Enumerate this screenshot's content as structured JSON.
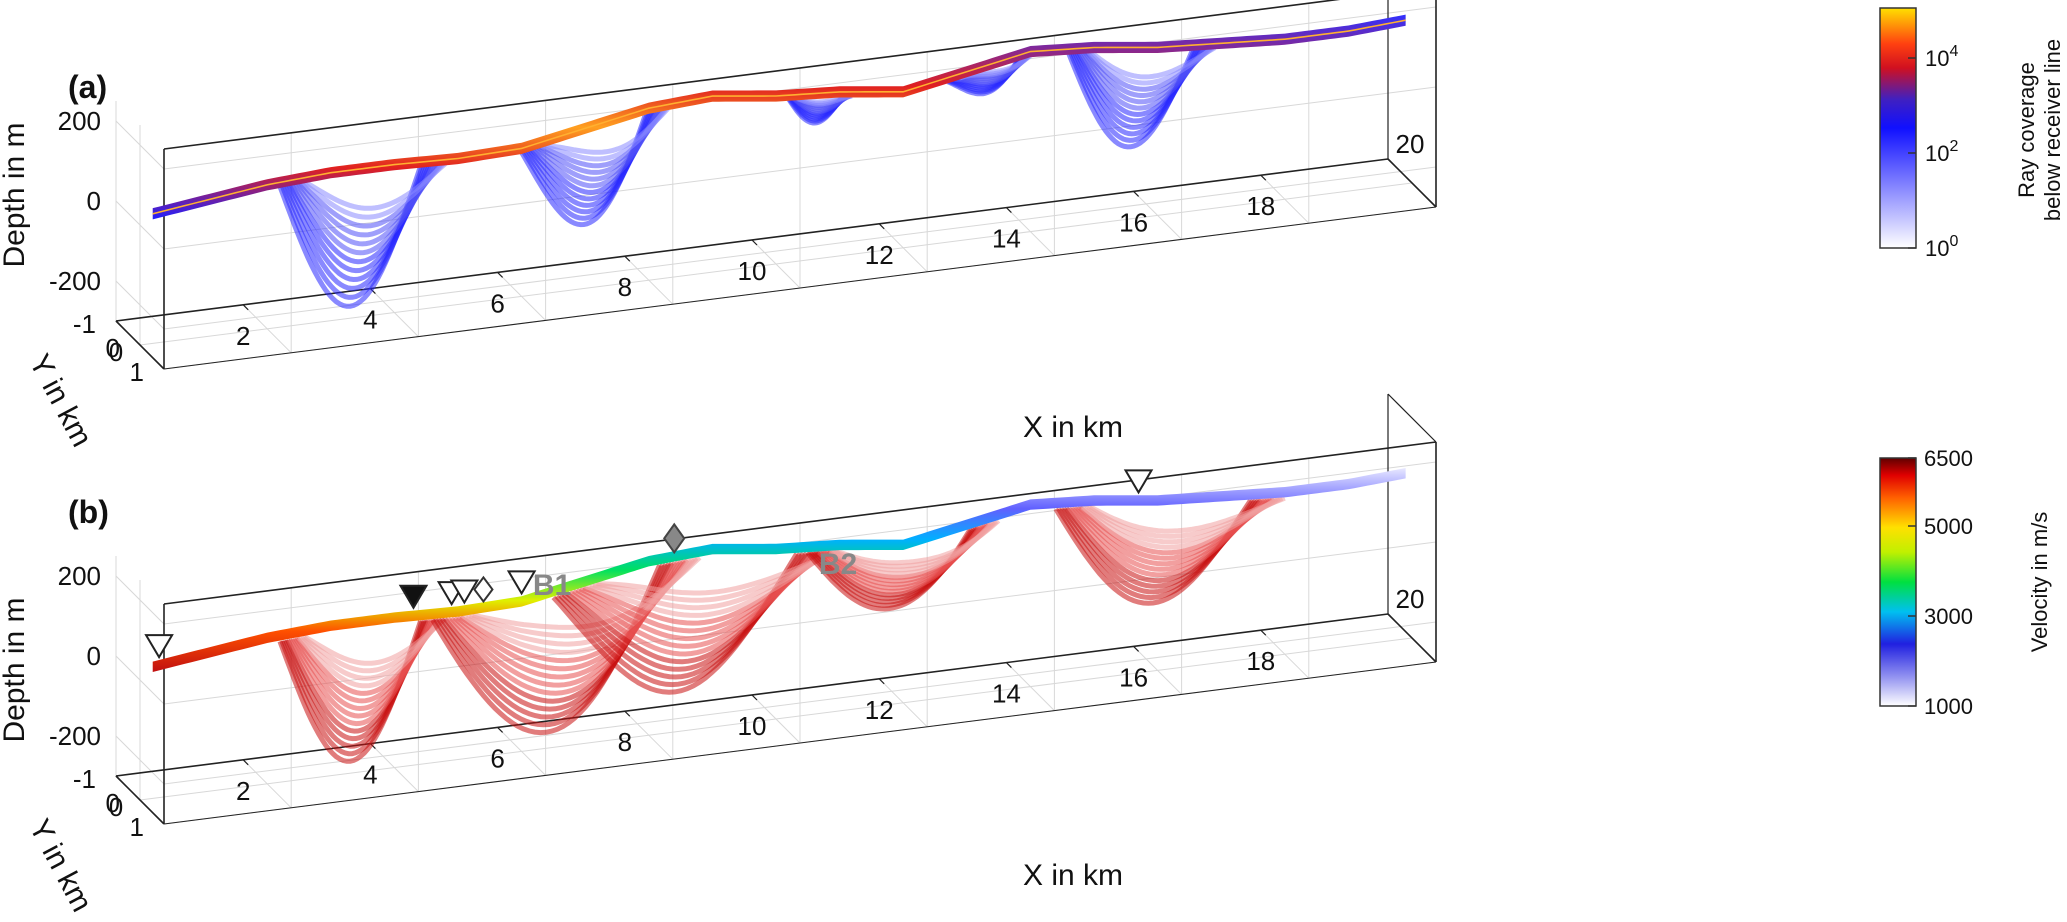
{
  "panels": [
    {
      "label": "(a)",
      "zlabel": "Depth in m",
      "ylabel": "Y in km",
      "xlabel": "X in km",
      "colorbar": {
        "label_line1": "Ray coverage",
        "label_line2": "below receiver line",
        "ticks": [
          {
            "base": "10",
            "exp": "4"
          },
          {
            "base": "10",
            "exp": "2"
          },
          {
            "base": "10",
            "exp": "0"
          }
        ]
      }
    },
    {
      "label": "(b)",
      "zlabel": "Depth in m",
      "ylabel": "Y in km",
      "xlabel": "X in km",
      "colorbar": {
        "label": "Velocity in m/s",
        "ticks": [
          "6500",
          "5000",
          "3000",
          "1000"
        ]
      },
      "borehole_labels": [
        "B1",
        "B2"
      ]
    }
  ],
  "colors": {
    "ray_low": "#f2f2ff",
    "ray_mid": "#1a1aff",
    "ray_high_red": "#e02020",
    "ray_max": "#ffee00",
    "vel_deep": "#d01818",
    "vel_fan": "#e87070"
  },
  "chart_data": [
    {
      "type": "3d-ray-coverage",
      "panel": "(a)",
      "x_ticks": [
        "0",
        "2",
        "4",
        "6",
        "8",
        "10",
        "12",
        "14",
        "16",
        "18",
        "20"
      ],
      "y_ticks": [
        "-1",
        "0",
        "1"
      ],
      "z_ticks": [
        "200",
        "0",
        "-200"
      ],
      "xlim": [
        0,
        20
      ],
      "ylim": [
        -1,
        1
      ],
      "zlim": [
        -300,
        250
      ],
      "colorbar": {
        "type": "log",
        "range": [
          1,
          100000
        ]
      },
      "surface_profile_m": {
        "x_km": [
          0,
          1,
          2,
          3,
          4,
          5,
          6,
          7,
          8,
          9,
          10,
          11,
          12,
          13,
          14,
          15,
          16,
          17,
          18,
          19,
          20
        ],
        "z": [
          20,
          40,
          60,
          70,
          70,
          65,
          70,
          100,
          130,
          140,
          120,
          110,
          90,
          120,
          150,
          140,
          120,
          110,
          100,
          100,
          110
        ]
      },
      "ray_basins": [
        {
          "x_start": 2.2,
          "x_end": 4.8,
          "max_depth_m": -270
        },
        {
          "x_start": 6.0,
          "x_end": 8.3,
          "max_depth_m": -140
        },
        {
          "x_start": 10.2,
          "x_end": 11.2,
          "max_depth_m": 40
        },
        {
          "x_start": 12.7,
          "x_end": 14.0,
          "max_depth_m": 60
        },
        {
          "x_start": 14.6,
          "x_end": 16.9,
          "max_depth_m": -120
        }
      ]
    },
    {
      "type": "3d-velocity-model",
      "panel": "(b)",
      "x_ticks": [
        "0",
        "2",
        "4",
        "6",
        "8",
        "10",
        "12",
        "14",
        "16",
        "18",
        "20"
      ],
      "y_ticks": [
        "-1",
        "0",
        "1"
      ],
      "z_ticks": [
        "200",
        "0",
        "-200"
      ],
      "xlim": [
        0,
        20
      ],
      "ylim": [
        -1,
        1
      ],
      "zlim": [
        -300,
        250
      ],
      "colorbar": {
        "type": "linear",
        "range": [
          1000,
          6500
        ],
        "unit": "m/s"
      },
      "receiver_markers_x_km": [
        0.3,
        4.3,
        4.9,
        5.1,
        6.0,
        15.7
      ],
      "filled_marker_x_km": 4.3,
      "boreholes": [
        {
          "label": "B1",
          "x_km": 5.4
        },
        {
          "label": "B2",
          "x_km": 8.4
        }
      ]
    }
  ]
}
